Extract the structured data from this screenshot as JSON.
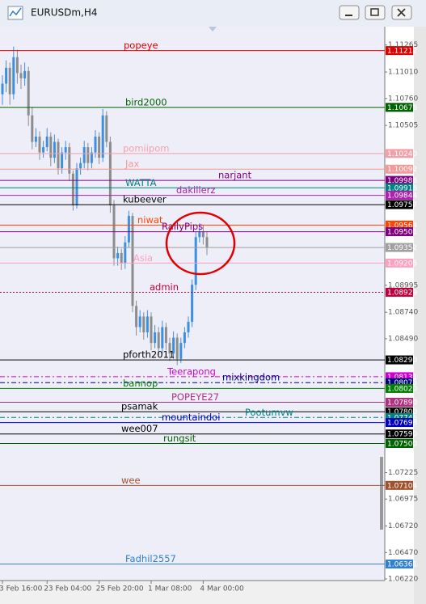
{
  "chart_data": {
    "type": "candlestick",
    "title": "EURUSDm,H4",
    "up_color": "#3d8fe0",
    "down_color": "#8c8c8c",
    "open": [
      1.108,
      1.109,
      1.1105,
      1.108,
      1.1115,
      1.11,
      1.1095,
      1.1102,
      1.106,
      1.1035,
      1.104,
      1.1025,
      1.103,
      1.104,
      1.102,
      1.1035,
      1.101,
      1.1025,
      1.103,
      1.1005,
      1.0975,
      1.101,
      1.1015,
      1.103,
      1.1015,
      1.1025,
      1.104,
      1.102,
      1.106,
      1.1035,
      1.0975,
      1.0925,
      1.093,
      1.092,
      1.094,
      1.0965,
      1.088,
      1.086,
      1.087,
      1.0855,
      1.087,
      1.0845,
      1.0855,
      1.084,
      1.086,
      1.0845,
      1.0835,
      1.085,
      1.083,
      1.0845,
      1.0855,
      1.0865,
      1.09,
      1.0945,
      1.095,
      1.0945
    ],
    "high": [
      1.1098,
      1.1112,
      1.111,
      1.1125,
      1.1122,
      1.1108,
      1.111,
      1.1106,
      1.1068,
      1.1048,
      1.1045,
      1.1036,
      1.1048,
      1.1044,
      1.1042,
      1.1038,
      1.103,
      1.1036,
      1.1034,
      1.1008,
      1.1015,
      1.102,
      1.1036,
      1.1034,
      1.103,
      1.1046,
      1.1044,
      1.1066,
      1.1064,
      1.104,
      1.098,
      1.0936,
      1.0934,
      1.0946,
      1.097,
      1.0968,
      1.0885,
      1.0876,
      1.0874,
      1.0876,
      1.0874,
      1.0862,
      1.086,
      1.0866,
      1.0864,
      1.085,
      1.0856,
      1.0854,
      1.085,
      1.086,
      1.087,
      1.0905,
      1.095,
      1.0958,
      1.0956,
      1.095
    ],
    "low": [
      1.107,
      1.1082,
      1.107,
      1.1075,
      1.109,
      1.1085,
      1.1088,
      1.105,
      1.1028,
      1.103,
      1.1018,
      1.102,
      1.1026,
      1.1012,
      1.1015,
      1.1004,
      1.1005,
      1.1018,
      1.0998,
      1.097,
      1.0972,
      1.1004,
      1.101,
      1.1008,
      1.101,
      1.102,
      1.1014,
      1.1016,
      1.103,
      1.0968,
      1.0918,
      1.0918,
      1.0914,
      1.0915,
      1.0935,
      1.0874,
      1.0852,
      1.0855,
      1.0848,
      1.085,
      1.0838,
      1.084,
      1.0834,
      1.0835,
      1.0838,
      1.0828,
      1.083,
      1.0824,
      1.0826,
      1.084,
      1.085,
      1.086,
      1.0895,
      1.094,
      1.0938,
      1.0928
    ],
    "close": [
      1.109,
      1.1105,
      1.108,
      1.1115,
      1.11,
      1.1095,
      1.1102,
      1.106,
      1.1035,
      1.104,
      1.1025,
      1.103,
      1.104,
      1.102,
      1.1035,
      1.101,
      1.1025,
      1.103,
      1.1005,
      1.0975,
      1.101,
      1.1015,
      1.103,
      1.1015,
      1.1025,
      1.104,
      1.102,
      1.106,
      1.1035,
      1.0975,
      1.0925,
      1.093,
      1.092,
      1.094,
      1.0965,
      1.088,
      1.086,
      1.087,
      1.0855,
      1.087,
      1.0845,
      1.0855,
      1.084,
      1.086,
      1.0845,
      1.0835,
      1.085,
      1.083,
      1.0845,
      1.0855,
      1.0865,
      1.09,
      1.0945,
      1.095,
      1.0945,
      1.0935
    ],
    "ylim": [
      1.06205,
      1.11423
    ],
    "yticks": [
      {
        "value": 1.11265,
        "label": "1.11265"
      },
      {
        "value": 1.1101,
        "label": "1.11010"
      },
      {
        "value": 1.1076,
        "label": "1.10760"
      },
      {
        "value": 1.10505,
        "label": "1.10505"
      },
      {
        "value": 1.08995,
        "label": "1.08995"
      },
      {
        "value": 1.0874,
        "label": "1.08740"
      },
      {
        "value": 1.0849,
        "label": "1.08490"
      },
      {
        "value": 1.07225,
        "label": "1.07225"
      },
      {
        "value": 1.06975,
        "label": "1.06975"
      },
      {
        "value": 1.0672,
        "label": "1.06720"
      },
      {
        "value": 1.0647,
        "label": "1.06470"
      },
      {
        "value": 1.0622,
        "label": "1.06220"
      }
    ],
    "xticks": [
      {
        "value": 0,
        "label": "3 Feb 16:00"
      },
      {
        "value": 12,
        "label": "23 Feb 04:00"
      },
      {
        "value": 26,
        "label": "25 Feb 20:00"
      },
      {
        "value": 40,
        "label": "1 Mar 08:00"
      },
      {
        "value": 54,
        "label": "4 Mar 00:00"
      }
    ],
    "levels": {
      "names": [
        "popeye",
        "bird2000",
        "pomiipom",
        "Jax",
        "narjant",
        "WATTA",
        "dakillerz",
        "kubeever",
        "niwat",
        "RallyPips",
        null,
        "Asia",
        "admin",
        "pforth2011",
        "Teerapong",
        "mixkingdom",
        "bannop",
        "POPEYE27",
        "psamak",
        "Pootumvw",
        "mountaindoi",
        "wee007",
        "rungsit",
        "wee",
        "Fadhil2557"
      ],
      "values": [
        1.11212,
        1.10676,
        1.1024,
        1.10092,
        1.09986,
        1.09916,
        1.09844,
        1.09757,
        1.09564,
        1.09501,
        1.09352,
        1.09205,
        1.08929,
        1.0829,
        1.08131,
        1.08075,
        1.0802,
        1.0789,
        1.078,
        1.07746,
        1.07698,
        1.0759,
        1.075,
        1.07104,
        1.06361
      ],
      "value_labels": [
        "1.11212",
        "1.10676",
        "1.10240",
        "1.10092",
        "1.09986",
        "1.09916",
        "1.09844",
        "1.09757",
        "1.09564",
        "1.09501",
        "1.09352",
        "1.09205",
        "1.08929",
        "1.08290",
        "1.08131",
        "1.08075",
        "1.08020",
        "1.07890",
        "1.07800",
        "1.07746",
        "1.07698",
        "1.07590",
        "1.07500",
        "1.07104",
        "1.06361"
      ],
      "colors": [
        "#e00000",
        "#006400",
        "#f4a0a8",
        "#f29a9a",
        "#800080",
        "#008080",
        "#b020b0",
        "#000000",
        "#ff4500",
        "#800080",
        "#a0a0a0",
        "#ff9fc0",
        "#c0003c",
        "#000000",
        "#d000d0",
        "#000080",
        "#008000",
        "#b0307f",
        "#000000",
        "#008080",
        "#0000c0",
        "#000000",
        "#006400",
        "#a0522d",
        "#3080d0"
      ],
      "styles": [
        "solid",
        "solid",
        "solid",
        "solid",
        "solid",
        "solid",
        "solid",
        "solid",
        "solid",
        "solid",
        "solid",
        "solid",
        "dotted",
        "solid",
        "dashdot",
        "dashdot",
        "solid",
        "solid",
        "solid",
        "dashdot",
        "solid",
        "solid",
        "solid",
        "solid",
        "solid"
      ]
    }
  }
}
